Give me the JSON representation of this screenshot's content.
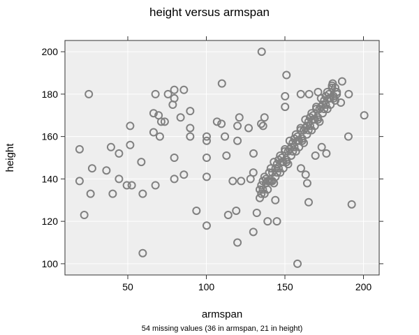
{
  "chart_data": {
    "type": "scatter",
    "title": "height versus armspan",
    "xlabel": "armspan",
    "ylabel": "height",
    "subtitle": "54 missing values (36 in armspan, 21 in height)",
    "xlim": [
      10,
      210
    ],
    "ylim": [
      94.7,
      205.3
    ],
    "xticks": [
      50,
      100,
      150,
      200
    ],
    "yticks": [
      100,
      120,
      140,
      160,
      180,
      200
    ],
    "grid": true,
    "background_color": "#EEEEEE",
    "grid_color": "#FFFFFF",
    "point_color": "#808080",
    "marker": "open-circle",
    "points": [
      [
        25.2,
        180
      ],
      [
        19.3,
        154
      ],
      [
        19.3,
        139
      ],
      [
        27.3,
        145
      ],
      [
        26.3,
        133
      ],
      [
        22.3,
        123
      ],
      [
        36.4,
        144
      ],
      [
        39.3,
        155
      ],
      [
        44.4,
        152
      ],
      [
        44.4,
        140
      ],
      [
        40.4,
        133
      ],
      [
        51.5,
        165
      ],
      [
        51.5,
        156
      ],
      [
        49.4,
        137
      ],
      [
        52.5,
        137
      ],
      [
        58.6,
        148
      ],
      [
        59.5,
        133
      ],
      [
        59.5,
        105
      ],
      [
        67.6,
        180
      ],
      [
        66.4,
        171
      ],
      [
        69.6,
        170
      ],
      [
        71.3,
        167
      ],
      [
        73.5,
        167
      ],
      [
        66.4,
        162
      ],
      [
        70.4,
        160
      ],
      [
        67.6,
        137
      ],
      [
        75.6,
        180
      ],
      [
        79.6,
        182
      ],
      [
        79.6,
        178
      ],
      [
        78.6,
        175
      ],
      [
        85.7,
        182
      ],
      [
        89.7,
        172
      ],
      [
        83.6,
        169
      ],
      [
        89.7,
        164
      ],
      [
        89.7,
        160
      ],
      [
        79.6,
        150
      ],
      [
        79.6,
        140
      ],
      [
        85.7,
        142
      ],
      [
        93.7,
        125
      ],
      [
        100.2,
        160
      ],
      [
        100.2,
        158
      ],
      [
        100.2,
        150
      ],
      [
        100.2,
        141
      ],
      [
        100.2,
        118
      ],
      [
        109.9,
        185
      ],
      [
        106.8,
        167
      ],
      [
        109.6,
        166
      ],
      [
        111.8,
        160
      ],
      [
        112.8,
        151
      ],
      [
        116.8,
        139
      ],
      [
        113.9,
        123
      ],
      [
        135.2,
        200
      ],
      [
        151.0,
        189
      ],
      [
        121.0,
        169
      ],
      [
        119.8,
        165
      ],
      [
        126.9,
        164
      ],
      [
        137.0,
        169
      ],
      [
        134.9,
        166
      ],
      [
        136.1,
        165
      ],
      [
        119.8,
        158
      ],
      [
        130.0,
        152
      ],
      [
        122.1,
        139
      ],
      [
        128.1,
        140
      ],
      [
        129.9,
        143
      ],
      [
        119.0,
        125
      ],
      [
        132.1,
        124
      ],
      [
        139.0,
        120
      ],
      [
        144.9,
        120
      ],
      [
        129.9,
        115
      ],
      [
        119.8,
        110
      ],
      [
        158.0,
        100
      ],
      [
        143.9,
        130
      ],
      [
        165.1,
        129
      ],
      [
        192.5,
        128
      ],
      [
        200.5,
        170
      ],
      [
        190.4,
        160
      ],
      [
        169.4,
        151
      ],
      [
        176.4,
        152
      ],
      [
        173.4,
        155
      ],
      [
        164.2,
        138
      ],
      [
        163.2,
        142
      ],
      [
        160.2,
        145
      ],
      [
        150.1,
        179
      ],
      [
        150.1,
        174
      ],
      [
        160.1,
        180
      ],
      [
        165.4,
        180
      ],
      [
        171.1,
        181
      ],
      [
        180.4,
        185
      ],
      [
        186.4,
        186
      ],
      [
        190.6,
        180
      ],
      [
        185.6,
        176
      ],
      [
        134,
        131
      ],
      [
        134,
        135
      ],
      [
        135,
        137
      ],
      [
        135,
        133
      ],
      [
        136,
        135
      ],
      [
        136,
        139
      ],
      [
        137,
        141
      ],
      [
        137,
        133
      ],
      [
        138,
        138
      ],
      [
        138,
        140
      ],
      [
        139,
        135
      ],
      [
        139,
        139
      ],
      [
        140,
        143
      ],
      [
        140,
        139
      ],
      [
        141,
        139
      ],
      [
        141,
        145
      ],
      [
        142,
        143
      ],
      [
        142,
        139
      ],
      [
        143,
        148
      ],
      [
        143,
        138
      ],
      [
        144,
        141
      ],
      [
        144,
        145
      ],
      [
        145,
        147
      ],
      [
        145,
        143
      ],
      [
        146,
        145
      ],
      [
        146,
        149
      ],
      [
        147,
        151
      ],
      [
        147,
        143
      ],
      [
        148,
        148
      ],
      [
        148,
        150
      ],
      [
        149,
        145
      ],
      [
        149,
        148
      ],
      [
        150,
        153
      ],
      [
        150,
        154
      ],
      [
        151,
        149
      ],
      [
        151,
        148
      ],
      [
        152,
        153
      ],
      [
        152,
        147
      ],
      [
        153,
        158
      ],
      [
        153,
        154
      ],
      [
        154,
        151
      ],
      [
        154,
        155
      ],
      [
        155,
        157
      ],
      [
        155,
        153
      ],
      [
        156,
        155
      ],
      [
        156,
        159
      ],
      [
        157,
        161
      ],
      [
        157,
        153
      ],
      [
        158,
        158
      ],
      [
        158,
        160
      ],
      [
        159,
        155
      ],
      [
        159,
        158
      ],
      [
        160,
        163
      ],
      [
        160,
        164
      ],
      [
        161,
        159
      ],
      [
        161,
        158
      ],
      [
        162,
        163
      ],
      [
        162,
        157
      ],
      [
        163,
        168
      ],
      [
        163,
        164
      ],
      [
        164,
        161
      ],
      [
        164,
        165
      ],
      [
        165,
        167
      ],
      [
        165,
        163
      ],
      [
        166,
        165
      ],
      [
        166,
        169
      ],
      [
        167,
        171
      ],
      [
        167,
        163
      ],
      [
        168,
        168
      ],
      [
        168,
        170
      ],
      [
        169,
        165
      ],
      [
        169,
        168
      ],
      [
        170,
        173
      ],
      [
        170,
        174
      ],
      [
        171,
        169
      ],
      [
        171,
        168
      ],
      [
        172,
        173
      ],
      [
        172,
        167
      ],
      [
        173,
        178
      ],
      [
        173,
        174
      ],
      [
        174,
        171
      ],
      [
        174,
        175
      ],
      [
        175,
        177
      ],
      [
        175,
        173
      ],
      [
        176,
        175
      ],
      [
        176,
        179
      ],
      [
        177,
        181
      ],
      [
        177,
        173
      ],
      [
        178,
        178
      ],
      [
        178,
        180
      ],
      [
        179,
        175
      ],
      [
        179,
        178
      ],
      [
        180,
        183
      ],
      [
        180,
        184
      ],
      [
        181,
        179
      ],
      [
        181,
        178
      ],
      [
        182,
        183
      ],
      [
        182,
        177
      ],
      [
        183,
        181
      ],
      [
        183,
        180
      ]
    ]
  }
}
